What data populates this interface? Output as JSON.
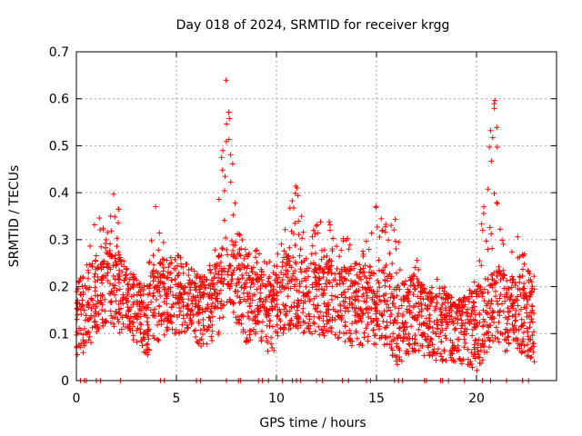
{
  "chart_data": {
    "type": "scatter",
    "title": "Day 018 of 2024, SRMTID for receiver krgg",
    "xlabel": "GPS time / hours",
    "ylabel": "SRMTID / TECUs",
    "xlim": [
      0,
      24
    ],
    "ylim": [
      0,
      0.7
    ],
    "xticks": [
      0,
      5,
      10,
      15,
      20
    ],
    "xtick_labels": [
      "0",
      "5",
      "10",
      "15",
      "20"
    ],
    "yticks": [
      0,
      0.1,
      0.2,
      0.3,
      0.4,
      0.5,
      0.6,
      0.7
    ],
    "ytick_labels": [
      "0",
      "0.1",
      "0.2",
      "0.3",
      "0.4",
      "0.5",
      "0.6",
      "0.7"
    ],
    "grid": true,
    "marker": "+",
    "series": [
      {
        "name": "SRMTID",
        "color": "#ff0000",
        "envelope": [
          [
            0.0,
            0.05,
            0.2
          ],
          [
            0.5,
            0.06,
            0.25
          ],
          [
            1.0,
            0.1,
            0.38
          ],
          [
            1.5,
            0.12,
            0.3
          ],
          [
            2.0,
            0.1,
            0.44
          ],
          [
            2.5,
            0.1,
            0.24
          ],
          [
            3.0,
            0.08,
            0.22
          ],
          [
            3.5,
            0.05,
            0.2
          ],
          [
            4.0,
            0.08,
            0.39
          ],
          [
            4.5,
            0.1,
            0.26
          ],
          [
            5.0,
            0.1,
            0.27
          ],
          [
            5.5,
            0.1,
            0.25
          ],
          [
            6.0,
            0.08,
            0.23
          ],
          [
            6.5,
            0.06,
            0.22
          ],
          [
            7.0,
            0.08,
            0.3
          ],
          [
            7.5,
            0.15,
            0.65
          ],
          [
            8.0,
            0.12,
            0.35
          ],
          [
            8.5,
            0.08,
            0.27
          ],
          [
            9.0,
            0.08,
            0.28
          ],
          [
            9.5,
            0.06,
            0.25
          ],
          [
            10.0,
            0.06,
            0.26
          ],
          [
            10.5,
            0.1,
            0.34
          ],
          [
            11.0,
            0.1,
            0.42
          ],
          [
            11.5,
            0.1,
            0.3
          ],
          [
            12.0,
            0.08,
            0.33
          ],
          [
            12.5,
            0.1,
            0.37
          ],
          [
            13.0,
            0.08,
            0.29
          ],
          [
            13.5,
            0.08,
            0.31
          ],
          [
            14.0,
            0.06,
            0.25
          ],
          [
            14.5,
            0.08,
            0.3
          ],
          [
            15.0,
            0.06,
            0.38
          ],
          [
            15.5,
            0.08,
            0.33
          ],
          [
            16.0,
            0.03,
            0.35
          ],
          [
            16.5,
            0.05,
            0.2
          ],
          [
            17.0,
            0.06,
            0.26
          ],
          [
            17.5,
            0.05,
            0.18
          ],
          [
            18.0,
            0.04,
            0.22
          ],
          [
            18.5,
            0.04,
            0.2
          ],
          [
            19.0,
            0.04,
            0.17
          ],
          [
            19.5,
            0.03,
            0.18
          ],
          [
            20.0,
            0.02,
            0.22
          ],
          [
            20.5,
            0.05,
            0.45
          ],
          [
            20.9,
            0.08,
            0.61
          ],
          [
            21.5,
            0.06,
            0.27
          ],
          [
            22.0,
            0.06,
            0.32
          ],
          [
            22.5,
            0.05,
            0.26
          ],
          [
            22.9,
            0.04,
            0.22
          ]
        ],
        "zero_points": [
          0.2,
          0.4,
          0.5,
          1.0,
          1.2,
          2.2,
          4.2,
          4.4,
          6.0,
          6.2,
          7.5,
          8.1,
          8.2,
          9.1,
          9.3,
          9.6,
          10.3,
          10.8,
          11.0,
          11.2,
          12.0,
          12.3,
          13.3,
          13.6,
          14.5,
          14.7,
          15.9,
          16.1,
          16.3,
          17.4,
          17.5,
          18.2,
          18.3,
          18.6,
          19.4,
          20.3,
          20.7,
          21.5,
          22.3,
          22.6
        ]
      }
    ]
  }
}
